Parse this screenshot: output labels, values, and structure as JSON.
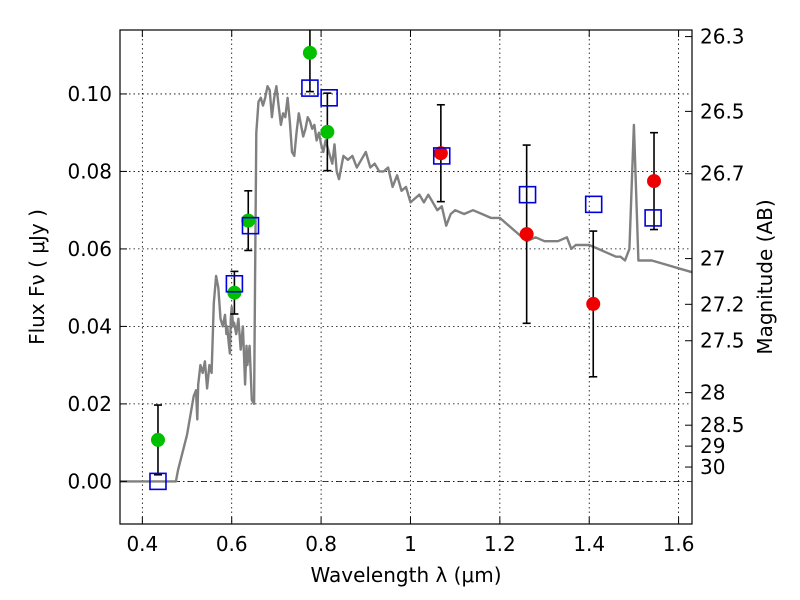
{
  "chart_data": {
    "type": "scatter",
    "xlabel": "Wavelength  λ (μm)",
    "ylabel": "Flux  Fν  ( μJy )",
    "ylabel_right": "Magnitude (AB)",
    "xlim": [
      0.35,
      1.63
    ],
    "ylim": [
      -0.011,
      0.1165
    ],
    "grid": true,
    "x_ticks": [
      0.4,
      0.6,
      0.8,
      1.0,
      1.2,
      1.4,
      1.6
    ],
    "x_tick_labels": [
      "0.4",
      "0.6",
      "0.8",
      "1",
      "1.2",
      "1.4",
      "1.6"
    ],
    "y_ticks": [
      0.0,
      0.02,
      0.04,
      0.06,
      0.08,
      0.1
    ],
    "y_tick_labels": [
      "0.00",
      "0.02",
      "0.04",
      "0.06",
      "0.08",
      "0.10"
    ],
    "mag_ticks": [
      {
        "flux": 0.1148,
        "label": "26.3"
      },
      {
        "flux": 0.0955,
        "label": "26.5"
      },
      {
        "flux": 0.0794,
        "label": "26.7"
      },
      {
        "flux": 0.0575,
        "label": "27"
      },
      {
        "flux": 0.0457,
        "label": "27.2"
      },
      {
        "flux": 0.0363,
        "label": "27.5"
      },
      {
        "flux": 0.0229,
        "label": "28"
      },
      {
        "flux": 0.0145,
        "label": "28.5"
      },
      {
        "flux": 0.0091,
        "label": "29"
      },
      {
        "flux": 0.0037,
        "label": "30"
      }
    ],
    "zero_line": 0.0,
    "model_sed": {
      "color": "#808080",
      "x": [
        0.35,
        0.475,
        0.48,
        0.5,
        0.515,
        0.52,
        0.523,
        0.525,
        0.53,
        0.535,
        0.54,
        0.545,
        0.55,
        0.555,
        0.56,
        0.565,
        0.57,
        0.575,
        0.58,
        0.585,
        0.588,
        0.59,
        0.593,
        0.596,
        0.598,
        0.6,
        0.603,
        0.605,
        0.607,
        0.61,
        0.615,
        0.62,
        0.625,
        0.63,
        0.633,
        0.635,
        0.64,
        0.645,
        0.65,
        0.652,
        0.655,
        0.66,
        0.665,
        0.67,
        0.675,
        0.68,
        0.685,
        0.69,
        0.695,
        0.7,
        0.705,
        0.71,
        0.715,
        0.72,
        0.725,
        0.73,
        0.735,
        0.74,
        0.745,
        0.75,
        0.755,
        0.76,
        0.765,
        0.77,
        0.775,
        0.78,
        0.785,
        0.79,
        0.795,
        0.8,
        0.805,
        0.81,
        0.815,
        0.82,
        0.825,
        0.83,
        0.835,
        0.84,
        0.85,
        0.86,
        0.87,
        0.88,
        0.89,
        0.9,
        0.91,
        0.92,
        0.93,
        0.94,
        0.95,
        0.96,
        0.97,
        0.98,
        0.99,
        1.0,
        1.01,
        1.02,
        1.03,
        1.04,
        1.05,
        1.06,
        1.07,
        1.08,
        1.09,
        1.1,
        1.12,
        1.14,
        1.16,
        1.18,
        1.2,
        1.22,
        1.24,
        1.26,
        1.28,
        1.3,
        1.33,
        1.35,
        1.36,
        1.37,
        1.4,
        1.42,
        1.44,
        1.46,
        1.47,
        1.48,
        1.49,
        1.5,
        1.51,
        1.52,
        1.54,
        1.57,
        1.6,
        1.63
      ],
      "y": [
        0.0,
        0.0,
        0.003,
        0.012,
        0.022,
        0.0235,
        0.016,
        0.025,
        0.03,
        0.028,
        0.031,
        0.024,
        0.03,
        0.028,
        0.046,
        0.053,
        0.05,
        0.042,
        0.04,
        0.043,
        0.038,
        0.04,
        0.036,
        0.033,
        0.042,
        0.045,
        0.04,
        0.041,
        0.04,
        0.038,
        0.042,
        0.034,
        0.04,
        0.025,
        0.035,
        0.03,
        0.035,
        0.021,
        0.02,
        0.05,
        0.09,
        0.098,
        0.099,
        0.097,
        0.099,
        0.102,
        0.101,
        0.094,
        0.099,
        0.102,
        0.097,
        0.092,
        0.095,
        0.094,
        0.099,
        0.093,
        0.085,
        0.084,
        0.09,
        0.095,
        0.092,
        0.089,
        0.091,
        0.094,
        0.093,
        0.091,
        0.092,
        0.088,
        0.09,
        0.087,
        0.085,
        0.088,
        0.086,
        0.084,
        0.082,
        0.087,
        0.08,
        0.078,
        0.084,
        0.083,
        0.084,
        0.081,
        0.083,
        0.085,
        0.081,
        0.082,
        0.08,
        0.08,
        0.081,
        0.076,
        0.079,
        0.075,
        0.076,
        0.072,
        0.073,
        0.074,
        0.072,
        0.074,
        0.072,
        0.07,
        0.071,
        0.066,
        0.069,
        0.07,
        0.069,
        0.07,
        0.069,
        0.068,
        0.068,
        0.066,
        0.064,
        0.062,
        0.063,
        0.062,
        0.062,
        0.063,
        0.06,
        0.061,
        0.061,
        0.06,
        0.059,
        0.058,
        0.058,
        0.057,
        0.06,
        0.092,
        0.057,
        0.057,
        0.057,
        0.056,
        0.055,
        0.054
      ]
    },
    "series": [
      {
        "marker": "filled-circle",
        "color": "#00c000",
        "points": [
          {
            "x": 0.435,
            "y": 0.0107,
            "err": 0.009
          },
          {
            "x": 0.606,
            "y": 0.0487,
            "err": 0.0055
          },
          {
            "x": 0.637,
            "y": 0.0673,
            "err": 0.0077
          },
          {
            "x": 0.775,
            "y": 0.1106,
            "err": 0.01
          },
          {
            "x": 0.814,
            "y": 0.0902,
            "err": 0.01
          }
        ]
      },
      {
        "marker": "filled-circle",
        "color": "#ee0000",
        "points": [
          {
            "x": 1.068,
            "y": 0.0847,
            "err": 0.0125
          },
          {
            "x": 1.26,
            "y": 0.0638,
            "err": 0.023
          },
          {
            "x": 1.409,
            "y": 0.0458,
            "err": 0.0188
          },
          {
            "x": 1.545,
            "y": 0.0775,
            "err": 0.0125
          }
        ]
      },
      {
        "marker": "open-square",
        "color": "#0000dd",
        "points": [
          {
            "x": 0.435,
            "y": 0.0
          },
          {
            "x": 0.606,
            "y": 0.051
          },
          {
            "x": 0.642,
            "y": 0.066
          },
          {
            "x": 0.775,
            "y": 0.1015
          },
          {
            "x": 0.818,
            "y": 0.099
          },
          {
            "x": 1.07,
            "y": 0.084
          },
          {
            "x": 1.262,
            "y": 0.074
          },
          {
            "x": 1.41,
            "y": 0.0715
          },
          {
            "x": 1.543,
            "y": 0.068
          }
        ]
      }
    ]
  }
}
